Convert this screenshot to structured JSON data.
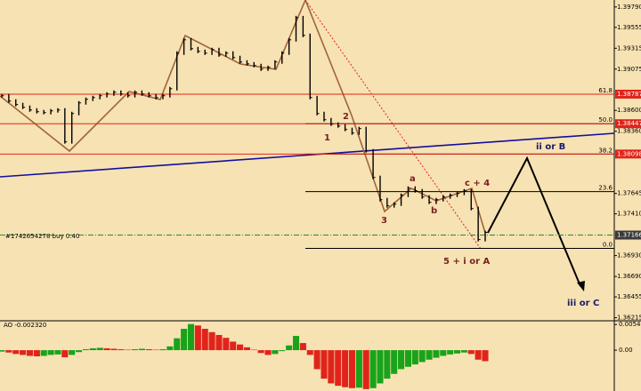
{
  "chart_data": [
    {
      "type": "price",
      "color": "#000000",
      "values": [
        1.38769,
        1.38708,
        1.38667,
        1.38636,
        1.38605,
        1.38585,
        1.38575,
        1.38595,
        1.38605,
        1.38238,
        1.38564,
        1.38687,
        1.38728,
        1.38748,
        1.38769,
        1.38789,
        1.38809,
        1.38789,
        1.38769,
        1.38809,
        1.38789,
        1.38769,
        1.38748,
        1.38769,
        1.3885,
        1.39259,
        1.39412,
        1.3931,
        1.39279,
        1.39259,
        1.393,
        1.39238,
        1.39259,
        1.39208,
        1.39157,
        1.39136,
        1.39116,
        1.39075,
        1.39095,
        1.39157,
        1.39259,
        1.39412,
        1.39667,
        1.39463,
        1.38748,
        1.38564,
        1.38493,
        1.38442,
        1.38421,
        1.38381,
        1.3834,
        1.38391,
        1.38135,
        1.37829,
        1.37573,
        1.37502,
        1.37522,
        1.37624,
        1.37706,
        1.37675,
        1.37604,
        1.37543,
        1.37573,
        1.37604,
        1.37624,
        1.37645,
        1.37675,
        1.37471,
        1.37114,
        1.37196
      ],
      "ylim": [
        1.3619,
        1.3987
      ],
      "yticks": [
        {
          "value": 1.3979,
          "label": "1.39790"
        },
        {
          "value": 1.39555,
          "label": "1.39555"
        },
        {
          "value": 1.39315,
          "label": "1.39315"
        },
        {
          "value": 1.39075,
          "label": "1.39075"
        },
        {
          "value": 1.386,
          "label": "1.38600"
        },
        {
          "value": 1.3836,
          "label": "1.38360"
        },
        {
          "value": 1.37645,
          "label": "1.37645"
        },
        {
          "value": 1.3741,
          "label": "1.37410"
        },
        {
          "value": 1.3693,
          "label": "1.36930"
        },
        {
          "value": 1.3669,
          "label": "1.36690"
        },
        {
          "value": 1.36455,
          "label": "1.36455"
        },
        {
          "value": 1.36215,
          "label": "1.36215"
        }
      ],
      "price_tags": [
        {
          "value": 1.38787,
          "label": "1.38787",
          "color": "#e0241b"
        },
        {
          "value": 1.38447,
          "label": "1.38447",
          "color": "#e0241b"
        },
        {
          "value": 1.38098,
          "label": "1.38098",
          "color": "#e0241b"
        },
        {
          "value": 1.37166,
          "label": "1.37166",
          "color": "#3a3a3a"
        }
      ],
      "fib_levels": [
        {
          "value": 1.38787,
          "label": "61.8"
        },
        {
          "value": 1.38447,
          "label": "50.0"
        },
        {
          "value": 1.38098,
          "label": "38.2"
        },
        {
          "value": 1.37666,
          "label": "23.6"
        },
        {
          "value": 1.37013,
          "label": "0.0"
        }
      ],
      "order_label": "#1742654278 buy 0.40",
      "annotations": [
        "1",
        "2",
        "3",
        "a",
        "b",
        "c + 4",
        "5 + i or A",
        "ii or B",
        "iii or C"
      ]
    },
    {
      "type": "ao",
      "title": "AO -0.002320",
      "up_color": "#1aa31a",
      "down_color": "#e0241b",
      "values": [
        -0.0003,
        -0.0005,
        -0.0008,
        -0.001,
        -0.0012,
        -0.0013,
        -0.0012,
        -0.001,
        -0.0009,
        -0.0015,
        -0.001,
        -0.0004,
        0.0002,
        0.0004,
        0.0005,
        0.0004,
        0.0003,
        0.0002,
        0.0001,
        0.0002,
        0.0003,
        0.0002,
        0.0001,
        0.0002,
        0.0008,
        0.0025,
        0.0045,
        0.0055,
        0.0052,
        0.0045,
        0.0038,
        0.0032,
        0.0026,
        0.0018,
        0.0012,
        0.0006,
        0.0001,
        -0.0006,
        -0.001,
        -0.0008,
        -0.0002,
        0.001,
        0.003,
        0.0015,
        -0.001,
        -0.004,
        -0.006,
        -0.007,
        -0.0075,
        -0.0078,
        -0.008,
        -0.0079,
        -0.0082,
        -0.008,
        -0.007,
        -0.006,
        -0.005,
        -0.004,
        -0.0035,
        -0.003,
        -0.0025,
        -0.002,
        -0.0016,
        -0.0012,
        -0.0009,
        -0.0007,
        -0.0005,
        -0.0008,
        -0.002,
        -0.00232
      ],
      "ylim": [
        -0.0086,
        0.006
      ],
      "yticks": [
        {
          "value": 0.005406,
          "label": "0.005406"
        },
        {
          "value": 0,
          "label": "0.00"
        }
      ]
    }
  ]
}
